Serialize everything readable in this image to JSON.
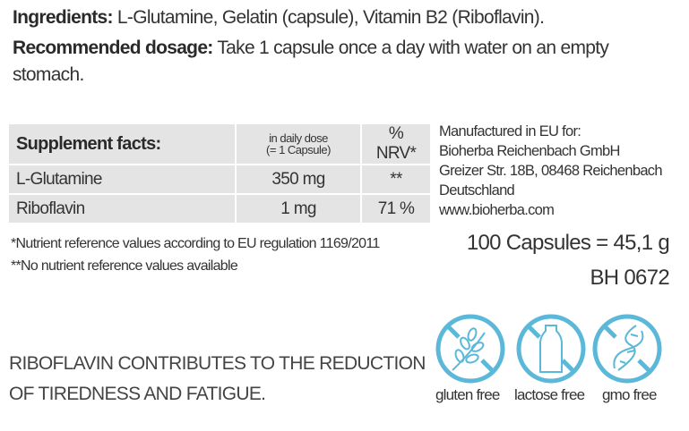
{
  "ingredients": {
    "label": "Ingredients:",
    "text": "L-Glutamine, Gelatin (capsule), Vitamin B2 (Riboflavin)."
  },
  "dosage": {
    "label": "Recommended dosage:",
    "text": "Take 1 capsule once a day with water on an empty",
    "text2": "stomach."
  },
  "facts": {
    "header": "Supplement facts:",
    "col_dose_1": "in daily dose",
    "col_dose_2": "(= 1 Capsule)",
    "col_nrv": "% NRV*",
    "rows": [
      {
        "name": "L-Glutamine",
        "dose": "350 mg",
        "nrv": "**"
      },
      {
        "name": "Riboflavin",
        "dose": "1 mg",
        "nrv": "71 %"
      }
    ]
  },
  "manufacturer": [
    "Manufactured in EU for:",
    "Bioherba Reichenbach GmbH",
    "Greizer Str. 18B, 08468 Reichenbach",
    "Deutschland",
    "www.bioherba.com"
  ],
  "footnotes": [
    "*Nutrient reference values according to EU regulation 1169/2011",
    "**No nutrient reference values available"
  ],
  "quantity": "100 Capsules = 45,1 g",
  "code": "BH 0672",
  "claim": [
    "RIBOFLAVIN CONTRIBUTES TO THE REDUCTION",
    "OF TIREDNESS AND FATIGUE."
  ],
  "badges": [
    {
      "icon": "wheat-crossed-icon",
      "label": "gluten free"
    },
    {
      "icon": "bottle-crossed-icon",
      "label": "lactose free"
    },
    {
      "icon": "dna-crossed-icon",
      "label": "gmo free"
    }
  ],
  "colors": {
    "badge": "#5bb8d8",
    "table_bg": "#e4e4e4",
    "text": "#333333"
  }
}
